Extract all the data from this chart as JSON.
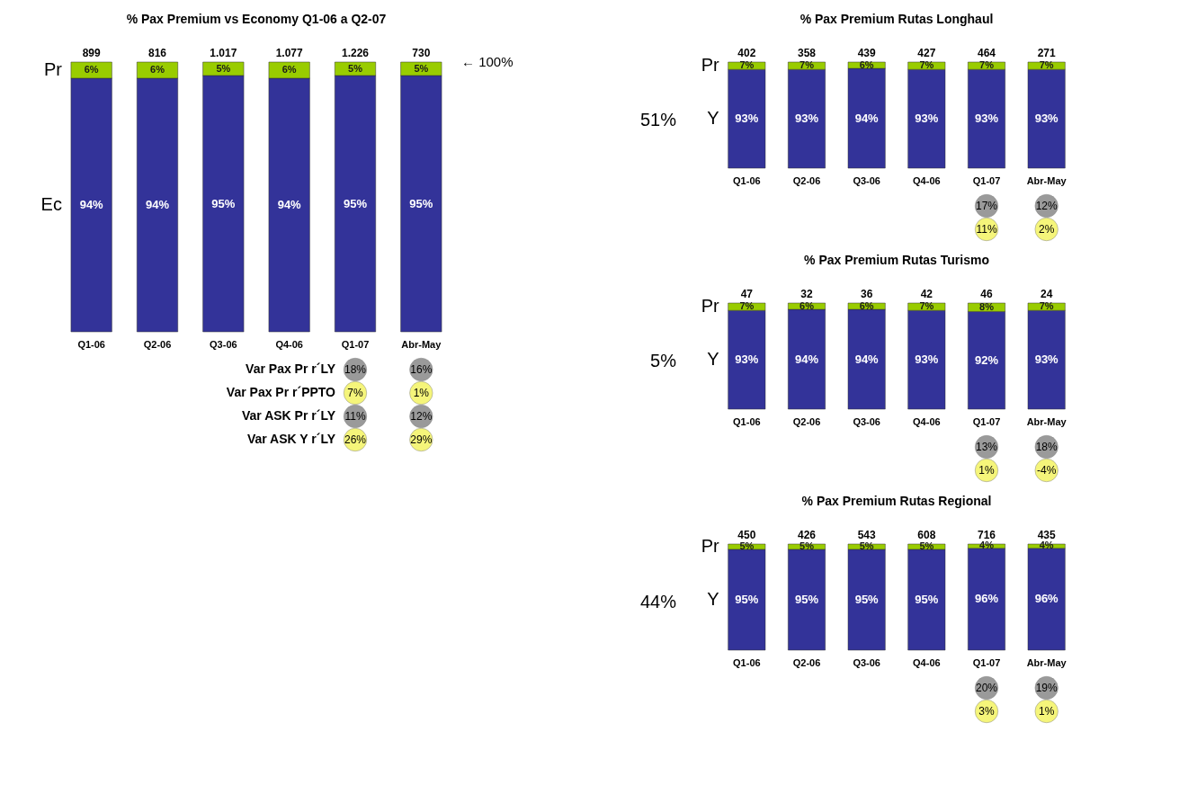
{
  "chart_data": [
    {
      "type": "bar",
      "stacked": true,
      "title": "% Pax Premium vs Economy Q1-06 a Q2-07",
      "categories": [
        "Q1-06",
        "Q2-06",
        "Q3-06",
        "Q4-06",
        "Q1-07",
        "Abr-May"
      ],
      "tick_labels": "x",
      "series": [
        {
          "name": "Ec",
          "color": "#333399",
          "values": [
            94,
            94,
            95,
            94,
            95,
            95
          ],
          "value_labels": [
            "94%",
            "94%",
            "95%",
            "94%",
            "95%",
            "95%"
          ]
        },
        {
          "name": "Pr",
          "color": "#99cc00",
          "values": [
            6,
            6,
            5,
            6,
            5,
            5
          ],
          "value_labels": [
            "6%",
            "6%",
            "5%",
            "6%",
            "5%",
            "5%"
          ]
        }
      ],
      "annotations": [
        "899",
        "816",
        "1.017",
        "1.077",
        "1.226",
        "730",
        "← 100%",
        "Var Pax Pr r´LY",
        "Var Pax Pr r´PPTO",
        "Var ASK Pr r´LY",
        "Var ASK Y r´LY",
        "18%",
        "7%",
        "11%",
        "26%",
        "16%",
        "1%",
        "12%",
        "29%"
      ]
    },
    {
      "type": "bar",
      "stacked": true,
      "title": "% Pax Premium Rutas Longhaul",
      "categories": [
        "Q1-06",
        "Q2-06",
        "Q3-06",
        "Q4-06",
        "Q1-07",
        "Abr-May"
      ],
      "tick_labels": "x",
      "series": [
        {
          "name": "Y",
          "color": "#333399",
          "values": [
            93,
            93,
            94,
            93,
            93,
            93
          ],
          "value_labels": [
            "93%",
            "93%",
            "94%",
            "93%",
            "93%",
            "93%"
          ]
        },
        {
          "name": "Pr",
          "color": "#99cc00",
          "values": [
            7,
            7,
            6,
            7,
            7,
            7
          ],
          "value_labels": [
            "7%",
            "7%",
            "6%",
            "7%",
            "7%",
            "7%"
          ]
        }
      ],
      "annotations": [
        "402",
        "358",
        "439",
        "427",
        "464",
        "271",
        "51%",
        "17%",
        "11%",
        "12%",
        "2%"
      ]
    },
    {
      "type": "bar",
      "stacked": true,
      "title": "% Pax Premium Rutas Turismo",
      "categories": [
        "Q1-06",
        "Q2-06",
        "Q3-06",
        "Q4-06",
        "Q1-07",
        "Abr-May"
      ],
      "tick_labels": "x",
      "series": [
        {
          "name": "Y",
          "color": "#333399",
          "values": [
            93,
            94,
            94,
            93,
            92,
            93
          ],
          "value_labels": [
            "93%",
            "94%",
            "94%",
            "93%",
            "92%",
            "93%"
          ]
        },
        {
          "name": "Pr",
          "color": "#99cc00",
          "values": [
            7,
            6,
            6,
            7,
            8,
            7
          ],
          "value_labels": [
            "7%",
            "6%",
            "6%",
            "7%",
            "8%",
            "7%"
          ]
        }
      ],
      "annotations": [
        "47",
        "32",
        "36",
        "42",
        "46",
        "24",
        "5%",
        "13%",
        "1%",
        "18%",
        "-4%"
      ]
    },
    {
      "type": "bar",
      "stacked": true,
      "title": "% Pax Premium Rutas Regional",
      "categories": [
        "Q1-06",
        "Q2-06",
        "Q3-06",
        "Q4-06",
        "Q1-07",
        "Abr-May"
      ],
      "tick_labels": "x",
      "series": [
        {
          "name": "Y",
          "color": "#333399",
          "values": [
            95,
            95,
            95,
            95,
            96,
            96
          ],
          "value_labels": [
            "95%",
            "95%",
            "95%",
            "95%",
            "96%",
            "96%"
          ]
        },
        {
          "name": "Pr",
          "color": "#99cc00",
          "values": [
            5,
            5,
            5,
            5,
            4,
            4
          ],
          "value_labels": [
            "5%",
            "5%",
            "5%",
            "5%",
            "4%",
            "4%"
          ]
        }
      ],
      "annotations": [
        "450",
        "426",
        "543",
        "608",
        "716",
        "435",
        "44%",
        "20%",
        "3%",
        "19%",
        "1%"
      ]
    }
  ]
}
